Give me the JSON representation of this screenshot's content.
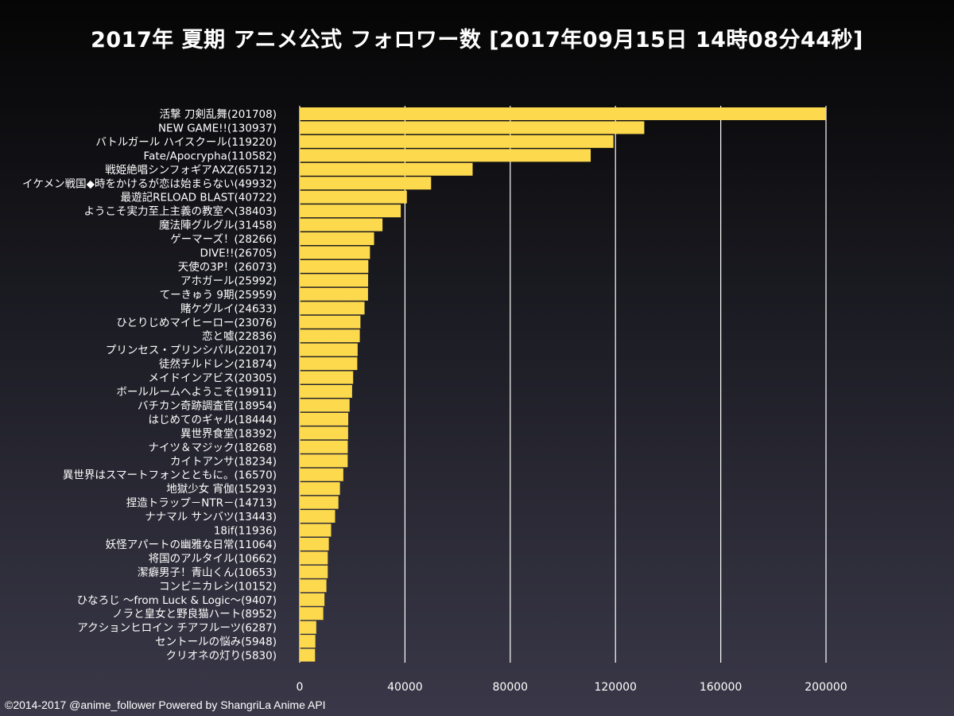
{
  "title": "2017年 夏期 アニメ公式 フォロワー数 [2017年09月15日 14時08分44秒]",
  "credit": "©2014-2017 @anime_follower Powered by ShangriLa Anime API",
  "colors": {
    "bar": "#FDD94E",
    "grid": "#FFFFFF",
    "text": "#FFFFFF"
  },
  "chart_data": {
    "type": "bar",
    "orientation": "horizontal",
    "title": "2017年 夏期 アニメ公式 フォロワー数 [2017年09月15日 14時08分44秒]",
    "xlim": [
      0,
      200000
    ],
    "xticks": [
      0,
      40000,
      80000,
      120000,
      160000,
      200000
    ],
    "xtick_labels": [
      "0",
      "40000",
      "80000",
      "120000",
      "160000",
      "200000"
    ],
    "grid": true,
    "categories": [
      "活撃 刀剣乱舞(201708)",
      "NEW GAME!!(130937)",
      "バトルガール ハイスクール(119220)",
      "Fate/Apocrypha(110582)",
      "戦姫絶唱シンフォギアAXZ(65712)",
      "イケメン戦国◆時をかけるが恋は始まらない(49932)",
      "最遊記RELOAD BLAST(40722)",
      "ようこそ実力至上主義の教室へ(38403)",
      "魔法陣グルグル(31458)",
      "ゲーマーズ！(28266)",
      "DIVE!!(26705)",
      "天使の3P！(26073)",
      "アホガール(25992)",
      "てーきゅう 9期(25959)",
      "賭ケグルイ(24633)",
      "ひとりじめマイヒーロー(23076)",
      "恋と嘘(22836)",
      "プリンセス・プリンシパル(22017)",
      "徒然チルドレン(21874)",
      "メイドインアビス(20305)",
      "ボールルームへようこそ(19911)",
      "バチカン奇跡調査官(18954)",
      "はじめてのギャル(18444)",
      "異世界食堂(18392)",
      "ナイツ＆マジック(18268)",
      "カイトアンサ(18234)",
      "異世界はスマートフォンとともに。(16570)",
      "地獄少女 宵伽(15293)",
      "捏造トラップ－NTR－(14713)",
      "ナナマル サンバツ(13443)",
      "18if(11936)",
      "妖怪アパートの幽雅な日常(11064)",
      "将国のアルタイル(10662)",
      "潔癖男子！青山くん(10653)",
      "コンビニカレシ(10152)",
      "ひなろじ ～from Luck & Logic～(9407)",
      "ノラと皇女と野良猫ハート(8952)",
      "アクションヒロイン チアフルーツ(6287)",
      "セントールの悩み(5948)",
      "クリオネの灯り(5830)"
    ],
    "values": [
      201708,
      130937,
      119220,
      110582,
      65712,
      49932,
      40722,
      38403,
      31458,
      28266,
      26705,
      26073,
      25992,
      25959,
      24633,
      23076,
      22836,
      22017,
      21874,
      20305,
      19911,
      18954,
      18444,
      18392,
      18268,
      18234,
      16570,
      15293,
      14713,
      13443,
      11936,
      11064,
      10662,
      10653,
      10152,
      9407,
      8952,
      6287,
      5948,
      5830
    ]
  }
}
